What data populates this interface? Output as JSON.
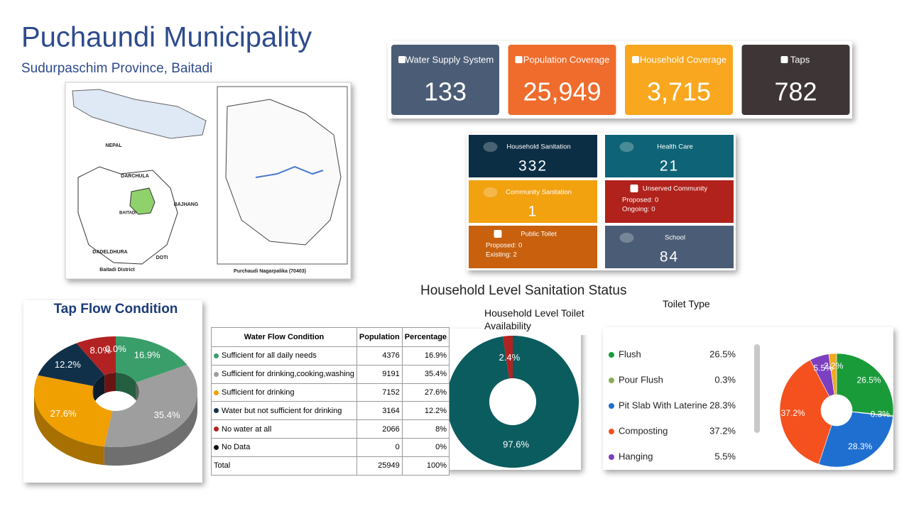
{
  "header": {
    "title": "Puchaundi Municipality",
    "subtitle": "Sudurpaschim Province, Baitadi"
  },
  "map": {
    "labels": [
      "NEPAL",
      "DARCHULA",
      "BAJHANG",
      "BAITADI",
      "DADELDHURA",
      "DOTI",
      "Baitadi District",
      "Purchaudi Nagarpalika (70403)"
    ]
  },
  "kpis": [
    {
      "label": "Water Supply System",
      "value": "133",
      "color": "#4b5d76"
    },
    {
      "label": "Population Coverage",
      "value": "25,949",
      "color": "#ef6c2c"
    },
    {
      "label": "Household Coverage",
      "value": "3,715",
      "color": "#f8a71f"
    },
    {
      "label": "Taps",
      "value": "782",
      "color": "#3e3636"
    }
  ],
  "sanitation": {
    "cards": [
      {
        "label": "Household Sanitation",
        "value": "332",
        "color": "#0c2e45"
      },
      {
        "label": "Health Care",
        "value": "21",
        "color": "#0e6476"
      },
      {
        "label": "Community Sanitation",
        "value": "1",
        "color": "#f2a10f"
      },
      {
        "label": "Unserved Community",
        "lines": [
          "Proposed: 0",
          "Ongoing: 0"
        ],
        "color": "#b0221b"
      },
      {
        "label": "Public Toilet",
        "lines": [
          "Proposed: 0",
          "Existing: 2"
        ],
        "color": "#c8600d"
      },
      {
        "label": "School",
        "value": "84",
        "color": "#4b5d76"
      }
    ]
  },
  "section_title": "Household Level Sanitation Status",
  "table": {
    "header": [
      "Water Flow Condition",
      "Population",
      "Percentage"
    ],
    "rows": [
      [
        "Sufficient for all daily needs",
        "4376",
        "16.9%"
      ],
      [
        "Sufficient for drinking,cooking,washing",
        "9191",
        "35.4%"
      ],
      [
        "Sufficient for drinking",
        "7152",
        "27.6%"
      ],
      [
        "Water but not sufficient for drinking",
        "3164",
        "12.2%"
      ],
      [
        "No water at all",
        "2066",
        "8%"
      ],
      [
        "No Data",
        "0",
        "0%"
      ],
      [
        "Total",
        "25949",
        "100%"
      ]
    ]
  },
  "chart_data": [
    {
      "type": "pie",
      "title": "Tap Flow Condition",
      "donut": true,
      "three_d": true,
      "values": [
        16.9,
        35.4,
        27.6,
        12.2,
        8.0,
        0.0
      ],
      "value_labels": [
        "16.9%",
        "35.4%",
        "27.6%",
        "12.2%",
        "8.0%",
        "0.0%"
      ],
      "colors": [
        "#3a9e6a",
        "#9e9e9e",
        "#f0a000",
        "#10304a",
        "#b22222",
        "#111111"
      ]
    },
    {
      "type": "pie",
      "title": "Household Level Toilet Availability",
      "donut": true,
      "values": [
        97.6,
        2.4
      ],
      "value_labels": [
        "97.6%",
        "2.4%"
      ],
      "colors": [
        "#0b5c5e",
        "#b22222"
      ]
    },
    {
      "type": "pie",
      "title": "Toilet Type",
      "donut": true,
      "categories": [
        "Flush",
        "Pour Flush",
        "Pit Slab With Laterine",
        "Composting",
        "Hanging",
        null
      ],
      "values": [
        26.5,
        0.3,
        28.3,
        37.2,
        5.5,
        2.2
      ],
      "value_labels": [
        "26.5%",
        "0.3%",
        "28.3%",
        "37.2%",
        "5.5%",
        "2.2%"
      ],
      "colors": [
        "#1a9b3a",
        "#8bab5a",
        "#1f6fd1",
        "#f4511e",
        "#7b3fbf",
        "#f2a81d"
      ]
    }
  ]
}
